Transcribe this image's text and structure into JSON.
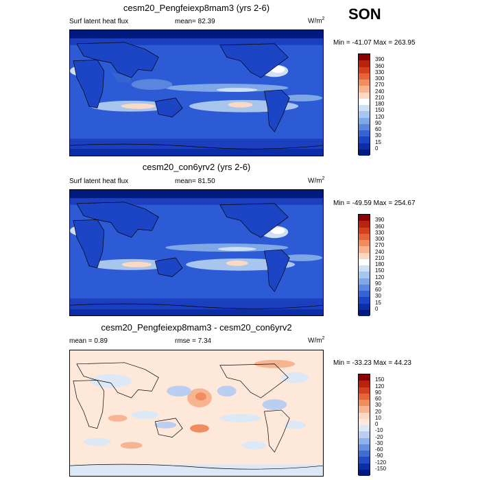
{
  "season": "SON",
  "panels": [
    {
      "title": "cesm20_Pengfeiexp8mam3 (yrs 2-6)",
      "left_label": "Surf latent heat flux",
      "center_label": "mean=  82.39",
      "units": "W/m",
      "units_sup": "2",
      "minmax": "Min = -41.07 Max = 263.95",
      "colorbar_ticks": [
        "390",
        "360",
        "330",
        "300",
        "270",
        "240",
        "210",
        "180",
        "150",
        "120",
        "90",
        "60",
        "30",
        "15",
        "0"
      ],
      "colorbar_colors": [
        "#8b0000",
        "#b8220e",
        "#d2401e",
        "#e6653a",
        "#f08c5e",
        "#f7b491",
        "#fcd9c3",
        "#ffffff",
        "#cfe0f5",
        "#a8c5ee",
        "#7ea8e6",
        "#5a87dd",
        "#3565d3",
        "#1b45c4",
        "#0b2da8",
        "#001a80"
      ]
    },
    {
      "title": "cesm20_con6yrv2 (yrs 2-6)",
      "left_label": "Surf latent heat flux",
      "center_label": "mean=  81.50",
      "units": "W/m",
      "units_sup": "2",
      "minmax": "Min = -49.59 Max = 254.67",
      "colorbar_ticks": [
        "390",
        "360",
        "330",
        "300",
        "270",
        "240",
        "210",
        "180",
        "150",
        "120",
        "90",
        "60",
        "30",
        "15",
        "0"
      ],
      "colorbar_colors": [
        "#8b0000",
        "#b8220e",
        "#d2401e",
        "#e6653a",
        "#f08c5e",
        "#f7b491",
        "#fcd9c3",
        "#ffffff",
        "#cfe0f5",
        "#a8c5ee",
        "#7ea8e6",
        "#5a87dd",
        "#3565d3",
        "#1b45c4",
        "#0b2da8",
        "#001a80"
      ]
    },
    {
      "title": "cesm20_Pengfeiexp8mam3 - cesm20_con6yrv2",
      "left_label": "mean =   0.89",
      "center_label": "rmse =   7.34",
      "units": "W/m",
      "units_sup": "2",
      "minmax": "Min = -33.23 Max =  44.23",
      "colorbar_ticks": [
        "150",
        "120",
        "90",
        "60",
        "30",
        "20",
        "10",
        "0",
        "-10",
        "-20",
        "-30",
        "-60",
        "-90",
        "-120",
        "-150"
      ],
      "colorbar_colors": [
        "#8b0000",
        "#b8220e",
        "#d2401e",
        "#e6653a",
        "#f08c5e",
        "#f7b491",
        "#fcd9c3",
        "#fde8da",
        "#dde8f7",
        "#b9cef0",
        "#8fb0e8",
        "#6690de",
        "#3f6dd4",
        "#1f4bc4",
        "#0b2da8",
        "#001a80"
      ]
    }
  ]
}
